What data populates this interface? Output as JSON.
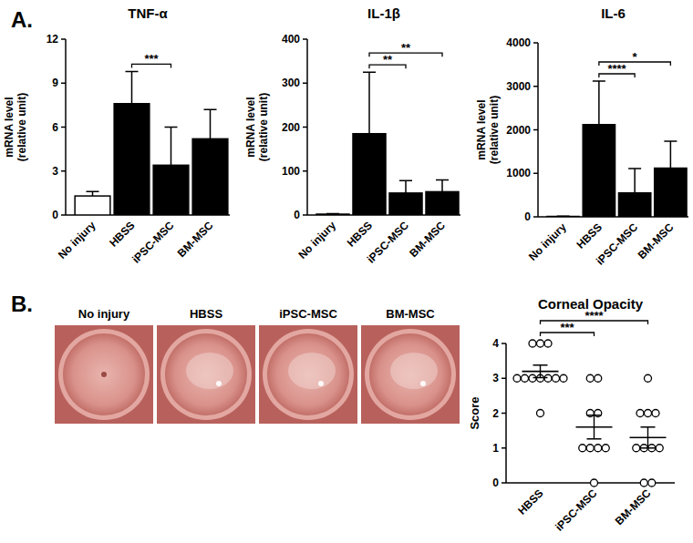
{
  "panel_labels": [
    "A.",
    "B."
  ],
  "photos": {
    "labels": [
      "No injury",
      "HBSS",
      "iPSC-MSC",
      "BM-MSC"
    ]
  },
  "chart_data": [
    {
      "type": "bar",
      "title": "TNF-α",
      "y_label": [
        "mRNA level",
        "(relative unit)"
      ],
      "categories": [
        "No injury",
        "HBSS",
        "iPSC-MSC",
        "BM-MSC"
      ],
      "values": [
        1.3,
        7.6,
        3.4,
        5.2
      ],
      "errors": [
        0.3,
        2.2,
        2.6,
        2.0
      ],
      "colors": [
        "#ffffff",
        "#000000",
        "#000000",
        "#000000"
      ],
      "ylim": [
        0,
        12
      ],
      "yticks": [
        0,
        3,
        6,
        9,
        12
      ],
      "significance": [
        {
          "from": "HBSS",
          "to": "iPSC-MSC",
          "label": "***"
        }
      ]
    },
    {
      "type": "bar",
      "title": "IL-1β",
      "y_label": [
        "mRNA level",
        "(relative unit)"
      ],
      "categories": [
        "No injury",
        "HBSS",
        "iPSC-MSC",
        "BM-MSC"
      ],
      "values": [
        2,
        185,
        50,
        53
      ],
      "errors": [
        1,
        140,
        28,
        27
      ],
      "colors": [
        "#ffffff",
        "#000000",
        "#000000",
        "#000000"
      ],
      "ylim": [
        0,
        400
      ],
      "yticks": [
        0,
        100,
        200,
        300,
        400
      ],
      "significance": [
        {
          "from": "HBSS",
          "to": "iPSC-MSC",
          "label": "**"
        },
        {
          "from": "HBSS",
          "to": "BM-MSC",
          "label": "**"
        }
      ]
    },
    {
      "type": "bar",
      "title": "IL-6",
      "y_label": [
        "mRNA level",
        "(relative unit)"
      ],
      "categories": [
        "No injury",
        "HBSS",
        "iPSC-MSC",
        "BM-MSC"
      ],
      "values": [
        10,
        2120,
        550,
        1120
      ],
      "errors": [
        5,
        1000,
        560,
        620
      ],
      "colors": [
        "#ffffff",
        "#000000",
        "#000000",
        "#000000"
      ],
      "ylim": [
        0,
        4000
      ],
      "yticks": [
        0,
        1000,
        2000,
        3000,
        4000
      ],
      "significance": [
        {
          "from": "HBSS",
          "to": "iPSC-MSC",
          "label": "****"
        },
        {
          "from": "HBSS",
          "to": "BM-MSC",
          "label": "*"
        }
      ]
    },
    {
      "type": "scatter",
      "title": "Corneal Opacity",
      "y_label": "Score",
      "categories": [
        "HBSS",
        "iPSC-MSC",
        "BM-MSC"
      ],
      "points": [
        [
          4,
          4,
          4,
          3,
          3,
          3,
          3,
          3,
          3,
          3,
          2
        ],
        [
          3,
          3,
          2,
          2,
          1,
          1,
          1,
          1,
          0
        ],
        [
          3,
          2,
          2,
          2,
          1,
          1,
          1,
          1,
          0,
          0
        ]
      ],
      "mean": [
        3.2,
        1.6,
        1.3
      ],
      "sem": [
        0.18,
        0.34,
        0.3
      ],
      "color": "#000000",
      "marker": "circle",
      "ylim": [
        0,
        4
      ],
      "yticks": [
        0,
        1,
        2,
        3,
        4
      ],
      "significance": [
        {
          "from": "HBSS",
          "to": "iPSC-MSC",
          "label": "***"
        },
        {
          "from": "HBSS",
          "to": "BM-MSC",
          "label": "****"
        }
      ]
    }
  ]
}
